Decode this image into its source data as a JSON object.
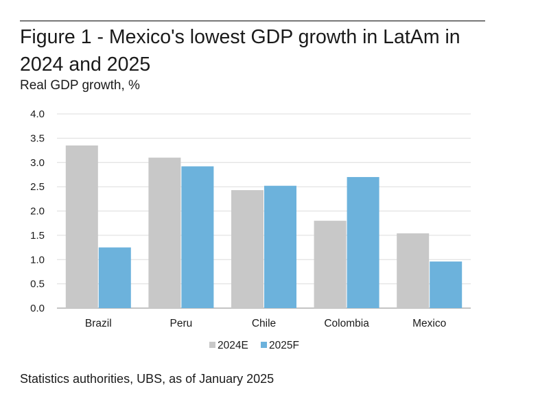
{
  "title": "Figure 1 - Mexico's lowest GDP growth in LatAm in 2024 and 2025",
  "subtitle": "Real GDP growth, %",
  "source": "Statistics authorities, UBS, as of January 2025",
  "colors": {
    "series_2024": "#c8c8c8",
    "series_2025": "#6cb2dc",
    "grid": "#dcdcdc",
    "axis": "#888888"
  },
  "chart_data": {
    "type": "bar",
    "categories": [
      "Brazil",
      "Peru",
      "Chile",
      "Colombia",
      "Mexico"
    ],
    "series": [
      {
        "name": "2024E",
        "values": [
          3.35,
          3.1,
          2.43,
          1.8,
          1.54
        ]
      },
      {
        "name": "2025F",
        "values": [
          1.25,
          2.92,
          2.52,
          2.7,
          0.96
        ]
      }
    ],
    "yticks": [
      "0.0",
      "0.5",
      "1.0",
      "1.5",
      "2.0",
      "2.5",
      "3.0",
      "3.5",
      "4.0"
    ],
    "ylim": [
      0,
      4
    ],
    "grid": true,
    "legend_position": "bottom-center"
  }
}
